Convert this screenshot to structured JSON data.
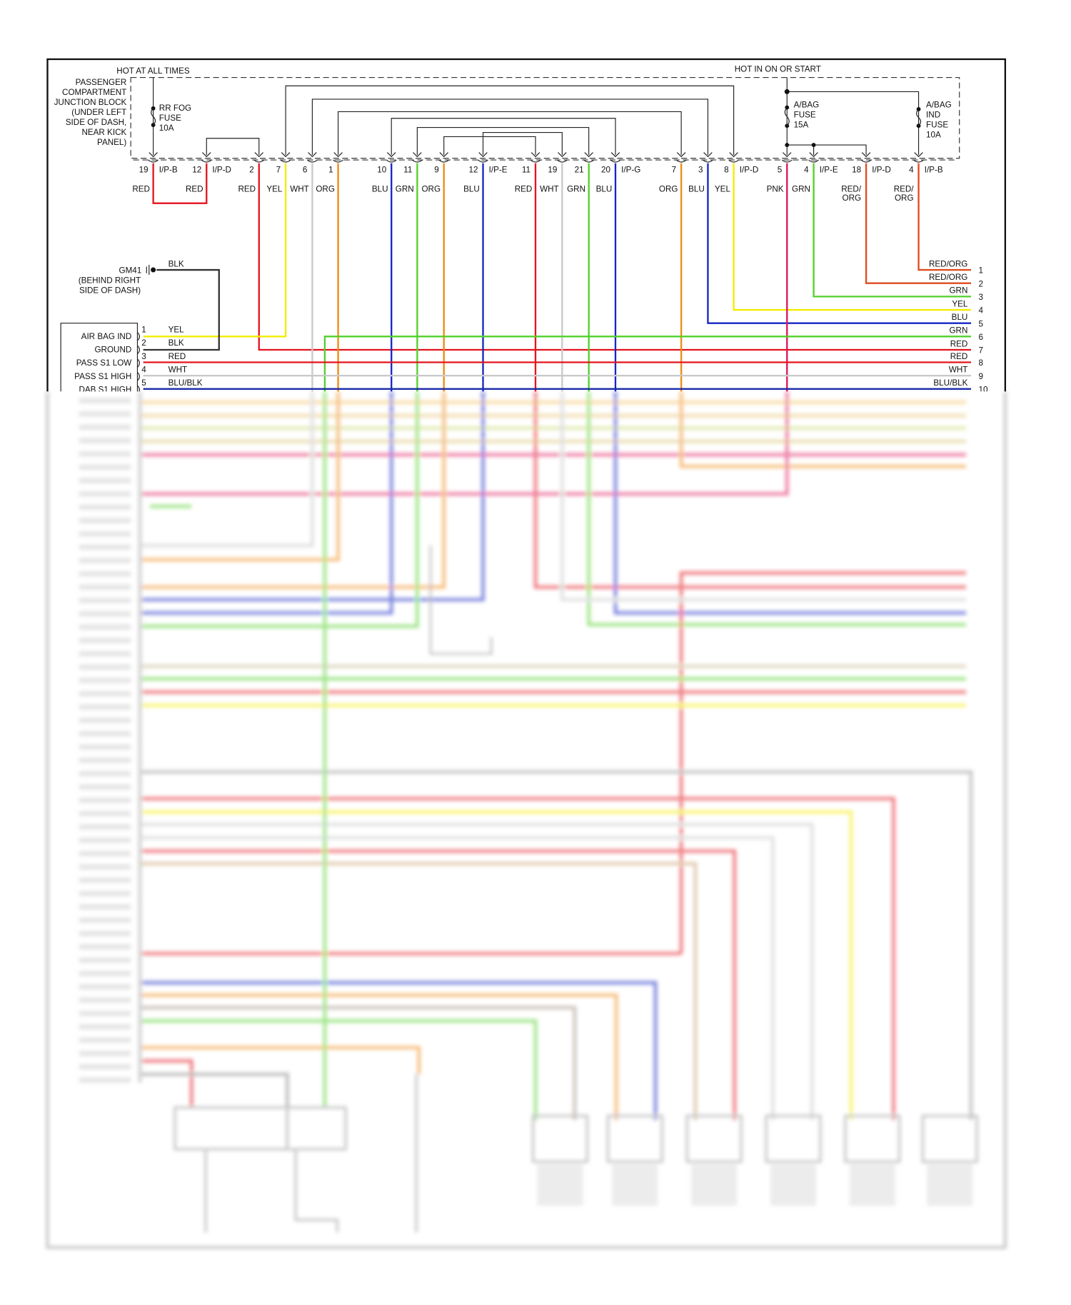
{
  "colors": {
    "RED": "#e3141e",
    "YEL": "#f2ec00",
    "WHT": "#c9c9c9",
    "ORG": "#f08a14",
    "BLU": "#1526c4",
    "GRN": "#52d02a",
    "PNK": "#e0145c",
    "RED/ORG": "#e04a1e",
    "BLK": "#333333",
    "BLU/BLK": "#1a2aa8"
  },
  "junction_block": {
    "hot_at_all_times": "HOT AT ALL TIMES",
    "hot_in_on_or_start": "HOT IN ON OR START",
    "label_lines": [
      "PASSENGER",
      "COMPARTMENT",
      "JUNCTION BLOCK",
      "(UNDER LEFT",
      "SIDE OF DASH,",
      "NEAR KICK",
      "PANEL)"
    ],
    "fuses": [
      {
        "lines": [
          "RR FOG",
          "FUSE",
          "10A"
        ]
      },
      {
        "lines": [
          "A/BAG",
          "FUSE",
          "15A"
        ]
      },
      {
        "lines": [
          "A/BAG",
          "IND",
          "FUSE",
          "10A"
        ]
      }
    ]
  },
  "pins": [
    {
      "num": "19",
      "conn": "I/P-B",
      "wire": "RED"
    },
    {
      "num": "12",
      "conn": "I/P-D",
      "wire": "RED"
    },
    {
      "num": "2",
      "conn": "",
      "wire": "RED"
    },
    {
      "num": "7",
      "conn": "",
      "wire": "YEL"
    },
    {
      "num": "6",
      "conn": "",
      "wire": "WHT"
    },
    {
      "num": "1",
      "conn": "",
      "wire": "ORG"
    },
    {
      "num": "10",
      "conn": "",
      "wire": "BLU"
    },
    {
      "num": "11",
      "conn": "",
      "wire": "GRN"
    },
    {
      "num": "9",
      "conn": "",
      "wire": "ORG"
    },
    {
      "num": "12",
      "conn": "I/P-E",
      "wire": "BLU"
    },
    {
      "num": "11",
      "conn": "",
      "wire": "RED"
    },
    {
      "num": "19",
      "conn": "",
      "wire": "WHT"
    },
    {
      "num": "21",
      "conn": "",
      "wire": "GRN"
    },
    {
      "num": "20",
      "conn": "I/P-G",
      "wire": "BLU"
    },
    {
      "num": "7",
      "conn": "",
      "wire": "ORG"
    },
    {
      "num": "3",
      "conn": "",
      "wire": "BLU"
    },
    {
      "num": "8",
      "conn": "I/P-D",
      "wire": "YEL"
    },
    {
      "num": "5",
      "conn": "",
      "wire": "PNK"
    },
    {
      "num": "4",
      "conn": "I/P-E",
      "wire": "GRN"
    },
    {
      "num": "18",
      "conn": "I/P-D",
      "wire": "RED/ORG"
    },
    {
      "num": "4",
      "conn": "I/P-B",
      "wire": "RED/ORG"
    }
  ],
  "ground": {
    "id": "GM41",
    "location_lines": [
      "(BEHIND RIGHT",
      "SIDE OF DASH)"
    ],
    "wire": "BLK"
  },
  "left_connector": {
    "pins": [
      {
        "num": "1",
        "label": "AIR BAG IND",
        "wire": "YEL"
      },
      {
        "num": "2",
        "label": "GROUND",
        "wire": "BLK"
      },
      {
        "num": "3",
        "label": "PASS S1 LOW",
        "wire": "RED"
      },
      {
        "num": "4",
        "label": "PASS S1 HIGH",
        "wire": "WHT"
      },
      {
        "num": "5",
        "label": "DAB S1 HIGH",
        "wire": "BLU/BLK"
      }
    ]
  },
  "right_connector": {
    "pins": [
      {
        "num": "1",
        "wire": "RED/ORG"
      },
      {
        "num": "2",
        "wire": "RED/ORG"
      },
      {
        "num": "3",
        "wire": "GRN"
      },
      {
        "num": "4",
        "wire": "YEL"
      },
      {
        "num": "5",
        "wire": "BLU"
      },
      {
        "num": "6",
        "wire": "GRN"
      },
      {
        "num": "7",
        "wire": "RED"
      },
      {
        "num": "8",
        "wire": "RED"
      },
      {
        "num": "9",
        "wire": "WHT"
      },
      {
        "num": "10",
        "wire": "BLU/BLK"
      }
    ]
  }
}
